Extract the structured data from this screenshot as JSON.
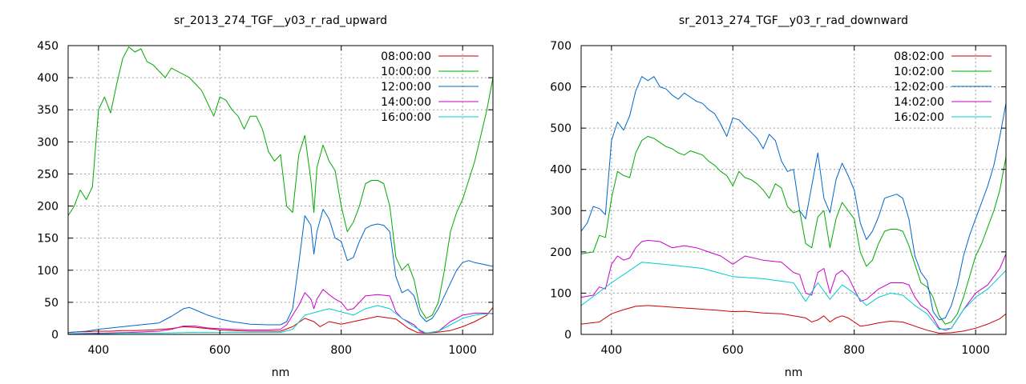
{
  "chart_data": [
    {
      "type": "line",
      "title": "sr_2013_274_TGF__y03_r_rad_upward",
      "xlabel": "nm",
      "ylabel": "",
      "xlim": [
        350,
        1050
      ],
      "ylim": [
        0,
        450
      ],
      "xticks": [
        400,
        600,
        800,
        1000
      ],
      "yticks": [
        0,
        50,
        100,
        150,
        200,
        250,
        300,
        350,
        400,
        450
      ],
      "grid": true,
      "legend": "top-right",
      "series": [
        {
          "name": "08:00:00",
          "color": "#cc0000",
          "x": [
            350,
            370,
            380,
            395,
            420,
            440,
            460,
            490,
            520,
            540,
            560,
            580,
            600,
            620,
            650,
            680,
            700,
            720,
            740,
            755,
            765,
            780,
            800,
            830,
            860,
            890,
            910,
            925,
            940,
            955,
            980,
            1000,
            1020,
            1040,
            1050
          ],
          "values": [
            3,
            4,
            4,
            5,
            5,
            6,
            6,
            7,
            9,
            12,
            11,
            9,
            7,
            6,
            5,
            5,
            5,
            12,
            25,
            20,
            12,
            20,
            16,
            22,
            28,
            24,
            10,
            3,
            2,
            3,
            6,
            12,
            20,
            30,
            42
          ]
        },
        {
          "name": "10:00:00",
          "color": "#00aa00",
          "x": [
            350,
            360,
            370,
            380,
            390,
            400,
            410,
            420,
            430,
            440,
            450,
            460,
            470,
            480,
            490,
            500,
            510,
            520,
            530,
            540,
            550,
            560,
            570,
            580,
            590,
            600,
            610,
            620,
            630,
            640,
            650,
            660,
            670,
            680,
            690,
            700,
            710,
            720,
            730,
            740,
            750,
            755,
            760,
            770,
            780,
            790,
            800,
            810,
            820,
            830,
            840,
            850,
            860,
            870,
            880,
            890,
            900,
            910,
            920,
            930,
            940,
            950,
            960,
            970,
            980,
            990,
            1000,
            1010,
            1020,
            1030,
            1040,
            1050
          ],
          "values": [
            185,
            200,
            225,
            210,
            230,
            350,
            370,
            345,
            390,
            430,
            448,
            440,
            445,
            425,
            420,
            410,
            400,
            415,
            410,
            405,
            400,
            390,
            380,
            360,
            340,
            370,
            365,
            350,
            340,
            320,
            340,
            340,
            320,
            285,
            270,
            280,
            200,
            190,
            280,
            310,
            240,
            190,
            260,
            295,
            270,
            255,
            200,
            160,
            175,
            200,
            235,
            240,
            240,
            235,
            200,
            120,
            100,
            110,
            85,
            40,
            25,
            30,
            50,
            100,
            160,
            190,
            210,
            240,
            270,
            310,
            350,
            400
          ]
        },
        {
          "name": "12:00:00",
          "color": "#0066cc",
          "x": [
            350,
            380,
            400,
            420,
            440,
            460,
            480,
            500,
            520,
            540,
            550,
            560,
            580,
            600,
            620,
            650,
            680,
            700,
            710,
            720,
            730,
            740,
            750,
            755,
            760,
            770,
            780,
            790,
            800,
            810,
            820,
            830,
            840,
            850,
            860,
            870,
            880,
            890,
            900,
            910,
            920,
            930,
            940,
            950,
            960,
            970,
            980,
            990,
            1000,
            1010,
            1020,
            1030,
            1040,
            1050
          ],
          "values": [
            3,
            5,
            8,
            10,
            12,
            14,
            16,
            18,
            28,
            40,
            42,
            38,
            30,
            24,
            20,
            16,
            15,
            15,
            20,
            40,
            110,
            185,
            170,
            125,
            160,
            195,
            180,
            150,
            145,
            115,
            120,
            145,
            165,
            170,
            172,
            170,
            160,
            90,
            65,
            70,
            60,
            30,
            20,
            25,
            40,
            60,
            80,
            100,
            112,
            115,
            112,
            110,
            108,
            106
          ]
        },
        {
          "name": "14:00:00",
          "color": "#cc00cc",
          "x": [
            350,
            400,
            450,
            500,
            520,
            540,
            560,
            580,
            600,
            620,
            650,
            680,
            700,
            710,
            720,
            730,
            740,
            750,
            755,
            760,
            770,
            780,
            790,
            800,
            810,
            820,
            830,
            840,
            860,
            880,
            890,
            900,
            910,
            920,
            930,
            940,
            960,
            980,
            1000,
            1020,
            1040,
            1050
          ],
          "values": [
            1,
            2,
            3,
            5,
            8,
            13,
            13,
            10,
            9,
            8,
            7,
            7,
            8,
            15,
            30,
            45,
            65,
            55,
            40,
            55,
            70,
            62,
            55,
            50,
            38,
            40,
            50,
            60,
            62,
            60,
            35,
            25,
            20,
            15,
            5,
            2,
            5,
            20,
            30,
            33,
            33,
            32
          ]
        },
        {
          "name": "16:00:00",
          "color": "#00cccc",
          "x": [
            350,
            400,
            450,
            500,
            550,
            600,
            650,
            700,
            720,
            740,
            760,
            780,
            800,
            820,
            840,
            860,
            880,
            900,
            920,
            940,
            960,
            980,
            1000,
            1020,
            1040,
            1050
          ],
          "values": [
            1,
            1,
            2,
            2,
            3,
            3,
            3,
            3,
            8,
            30,
            35,
            40,
            35,
            30,
            40,
            45,
            40,
            25,
            12,
            2,
            5,
            15,
            25,
            30,
            32,
            33
          ]
        }
      ]
    },
    {
      "type": "line",
      "title": "sr_2013_274_TGF__y03_r_rad_downward",
      "xlabel": "nm",
      "ylabel": "",
      "xlim": [
        350,
        1050
      ],
      "ylim": [
        0,
        700
      ],
      "xticks": [
        400,
        600,
        800,
        1000
      ],
      "yticks": [
        0,
        100,
        200,
        300,
        400,
        500,
        600,
        700
      ],
      "grid": true,
      "legend": "top-right",
      "series": [
        {
          "name": "08:02:00",
          "color": "#cc0000",
          "x": [
            350,
            380,
            400,
            420,
            440,
            460,
            480,
            500,
            520,
            540,
            560,
            580,
            600,
            620,
            650,
            680,
            700,
            720,
            730,
            740,
            750,
            760,
            770,
            780,
            790,
            800,
            810,
            820,
            840,
            860,
            880,
            900,
            920,
            940,
            960,
            980,
            1000,
            1020,
            1040,
            1050
          ],
          "values": [
            25,
            30,
            50,
            60,
            68,
            70,
            68,
            66,
            64,
            62,
            60,
            58,
            55,
            56,
            52,
            50,
            45,
            40,
            30,
            35,
            45,
            30,
            40,
            45,
            40,
            30,
            20,
            22,
            28,
            32,
            30,
            20,
            10,
            3,
            4,
            8,
            15,
            25,
            38,
            50
          ]
        },
        {
          "name": "10:02:00",
          "color": "#00aa00",
          "x": [
            350,
            370,
            380,
            390,
            400,
            410,
            420,
            430,
            440,
            450,
            460,
            470,
            480,
            490,
            500,
            510,
            520,
            530,
            540,
            550,
            560,
            570,
            580,
            590,
            600,
            610,
            620,
            630,
            640,
            650,
            660,
            670,
            680,
            690,
            700,
            710,
            720,
            730,
            740,
            750,
            760,
            770,
            780,
            790,
            800,
            810,
            820,
            830,
            840,
            850,
            860,
            870,
            880,
            890,
            900,
            910,
            920,
            930,
            940,
            950,
            960,
            970,
            980,
            990,
            1000,
            1010,
            1020,
            1030,
            1040,
            1050
          ],
          "values": [
            195,
            200,
            240,
            235,
            330,
            395,
            385,
            380,
            440,
            470,
            480,
            475,
            465,
            455,
            450,
            440,
            435,
            445,
            440,
            435,
            420,
            410,
            395,
            385,
            360,
            395,
            380,
            375,
            365,
            350,
            330,
            365,
            355,
            310,
            295,
            300,
            220,
            210,
            285,
            300,
            210,
            280,
            320,
            300,
            280,
            200,
            165,
            180,
            220,
            250,
            255,
            255,
            250,
            215,
            170,
            125,
            115,
            90,
            45,
            25,
            30,
            50,
            90,
            140,
            190,
            220,
            260,
            300,
            350,
            430
          ]
        },
        {
          "name": "12:02:00",
          "color": "#0066cc",
          "x": [
            350,
            360,
            370,
            380,
            390,
            400,
            410,
            420,
            430,
            440,
            450,
            460,
            470,
            480,
            490,
            500,
            510,
            520,
            530,
            540,
            550,
            560,
            570,
            580,
            590,
            600,
            610,
            620,
            630,
            640,
            650,
            660,
            670,
            680,
            690,
            700,
            710,
            720,
            730,
            740,
            750,
            760,
            770,
            780,
            790,
            800,
            810,
            820,
            830,
            840,
            850,
            860,
            870,
            880,
            890,
            900,
            910,
            920,
            930,
            940,
            950,
            960,
            970,
            980,
            990,
            1000,
            1010,
            1020,
            1030,
            1040,
            1050
          ],
          "values": [
            250,
            270,
            310,
            305,
            290,
            470,
            515,
            495,
            530,
            590,
            625,
            615,
            625,
            600,
            595,
            580,
            570,
            585,
            575,
            565,
            560,
            545,
            535,
            510,
            480,
            525,
            520,
            505,
            490,
            475,
            450,
            485,
            470,
            420,
            395,
            400,
            300,
            280,
            360,
            440,
            330,
            295,
            375,
            415,
            385,
            350,
            270,
            230,
            250,
            285,
            330,
            335,
            340,
            330,
            280,
            190,
            150,
            130,
            55,
            35,
            40,
            70,
            120,
            190,
            240,
            280,
            320,
            360,
            410,
            480,
            560
          ]
        },
        {
          "name": "14:02:00",
          "color": "#cc00cc",
          "x": [
            350,
            370,
            380,
            390,
            400,
            410,
            420,
            430,
            440,
            450,
            460,
            480,
            500,
            520,
            540,
            560,
            580,
            600,
            620,
            650,
            680,
            700,
            710,
            720,
            730,
            740,
            750,
            760,
            770,
            780,
            790,
            800,
            810,
            820,
            840,
            860,
            880,
            890,
            900,
            910,
            920,
            930,
            940,
            950,
            960,
            980,
            1000,
            1020,
            1040,
            1050
          ],
          "values": [
            90,
            95,
            115,
            110,
            170,
            190,
            180,
            185,
            210,
            225,
            228,
            225,
            210,
            215,
            210,
            200,
            190,
            170,
            190,
            180,
            175,
            150,
            145,
            100,
            95,
            150,
            160,
            100,
            145,
            155,
            140,
            110,
            80,
            85,
            110,
            125,
            125,
            120,
            90,
            70,
            60,
            40,
            15,
            10,
            15,
            60,
            100,
            120,
            160,
            195
          ]
        },
        {
          "name": "16:02:00",
          "color": "#00cccc",
          "x": [
            350,
            400,
            450,
            500,
            550,
            600,
            650,
            700,
            720,
            740,
            760,
            780,
            800,
            820,
            840,
            860,
            880,
            900,
            920,
            940,
            960,
            980,
            1000,
            1020,
            1040,
            1050
          ],
          "values": [
            70,
            125,
            175,
            168,
            160,
            140,
            135,
            125,
            80,
            125,
            85,
            120,
            100,
            70,
            90,
            100,
            95,
            70,
            50,
            12,
            15,
            60,
            90,
            110,
            140,
            155
          ]
        }
      ]
    }
  ]
}
